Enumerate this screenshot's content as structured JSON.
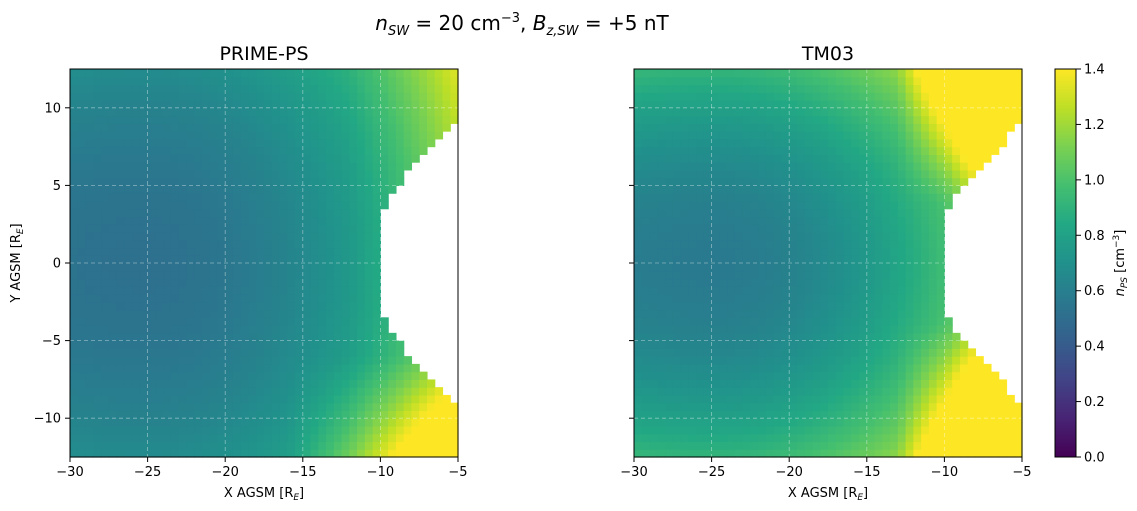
{
  "figure": {
    "suptitle_parts": {
      "n_base": "n",
      "n_sub": "SW",
      "eq1": " = 20 cm",
      "exp": "−3",
      "comma": ", ",
      "b_base": "B",
      "b_sub": "z,SW",
      "eq2": " = +5 nT"
    }
  },
  "chart_data": [
    {
      "type": "heatmap",
      "title": "PRIME-PS",
      "xlabel": "X AGSM [R_E]",
      "ylabel": "Y AGSM [R_E]",
      "xlim": [
        -30,
        -5
      ],
      "ylim": [
        -12.5,
        12.5
      ],
      "xticks": [
        -30,
        -25,
        -20,
        -15,
        -10,
        -5
      ],
      "yticks": [
        -10,
        -5,
        0,
        5,
        10
      ],
      "grid": true,
      "grid_step": 0.5,
      "colormap": "viridis",
      "clim": [
        0.0,
        1.4
      ],
      "field_description": "density n_PS in cm^-3 sampled on 0.5 R_E grid; empty (white) inside magnetopause boundary",
      "anchor_values": [
        {
          "x": -29.5,
          "y": 0,
          "value": 0.55
        },
        {
          "x": -25,
          "y": 0,
          "value": 0.52
        },
        {
          "x": -20,
          "y": 0,
          "value": 0.58
        },
        {
          "x": -15,
          "y": 0,
          "value": 0.7
        },
        {
          "x": -11,
          "y": 0,
          "value": 0.84
        },
        {
          "x": -29.5,
          "y": 12,
          "value": 0.66
        },
        {
          "x": -15,
          "y": 12,
          "value": 0.8
        },
        {
          "x": -6,
          "y": 11,
          "value": 0.95
        },
        {
          "x": -29.5,
          "y": -12,
          "value": 0.7
        },
        {
          "x": -15,
          "y": -11,
          "value": 0.85
        },
        {
          "x": -6,
          "y": -11,
          "value": 1.3
        }
      ]
    },
    {
      "type": "heatmap",
      "title": "TM03",
      "xlabel": "X AGSM [R_E]",
      "ylabel": "",
      "xlim": [
        -30,
        -5
      ],
      "ylim": [
        -12.5,
        12.5
      ],
      "xticks": [
        -30,
        -25,
        -20,
        -15,
        -10,
        -5
      ],
      "yticks": [
        -10,
        -5,
        0,
        5,
        10
      ],
      "grid": true,
      "grid_step": 0.5,
      "colormap": "viridis",
      "clim": [
        0.0,
        1.4
      ],
      "field_description": "density n_PS in cm^-3 sampled on 0.5 R_E grid; empty (white) inside magnetopause boundary",
      "anchor_values": [
        {
          "x": -29.5,
          "y": 0,
          "value": 0.62
        },
        {
          "x": -25,
          "y": 0,
          "value": 0.57
        },
        {
          "x": -20,
          "y": 0,
          "value": 0.68
        },
        {
          "x": -15,
          "y": 0,
          "value": 0.78
        },
        {
          "x": -11,
          "y": 0,
          "value": 0.85
        },
        {
          "x": -29.5,
          "y": 12,
          "value": 0.75
        },
        {
          "x": -12,
          "y": 10,
          "value": 1.1
        },
        {
          "x": -6,
          "y": 11,
          "value": 1.4
        },
        {
          "x": -29.5,
          "y": -12,
          "value": 0.75
        },
        {
          "x": -12,
          "y": -10,
          "value": 1.15
        },
        {
          "x": -6,
          "y": -11,
          "value": 1.4
        }
      ]
    }
  ],
  "colorbar": {
    "label_base": "n",
    "label_sub": "PS",
    "label_unit": " [cm",
    "label_exp": "−3",
    "label_close": "]",
    "ticks": [
      "0.0",
      "0.2",
      "0.4",
      "0.6",
      "0.8",
      "1.0",
      "1.2",
      "1.4"
    ],
    "min": 0.0,
    "max": 1.4
  },
  "axis_labels": {
    "x_base": "X AGSM [R",
    "x_sub": "E",
    "x_close": "]",
    "y_base": "Y AGSM [R",
    "y_sub": "E",
    "y_close": "]"
  },
  "tick_labels": {
    "x": [
      "−30",
      "−25",
      "−20",
      "−15",
      "−10",
      "−5"
    ],
    "y": [
      "10",
      "5",
      "0",
      "−5",
      "−10"
    ]
  }
}
